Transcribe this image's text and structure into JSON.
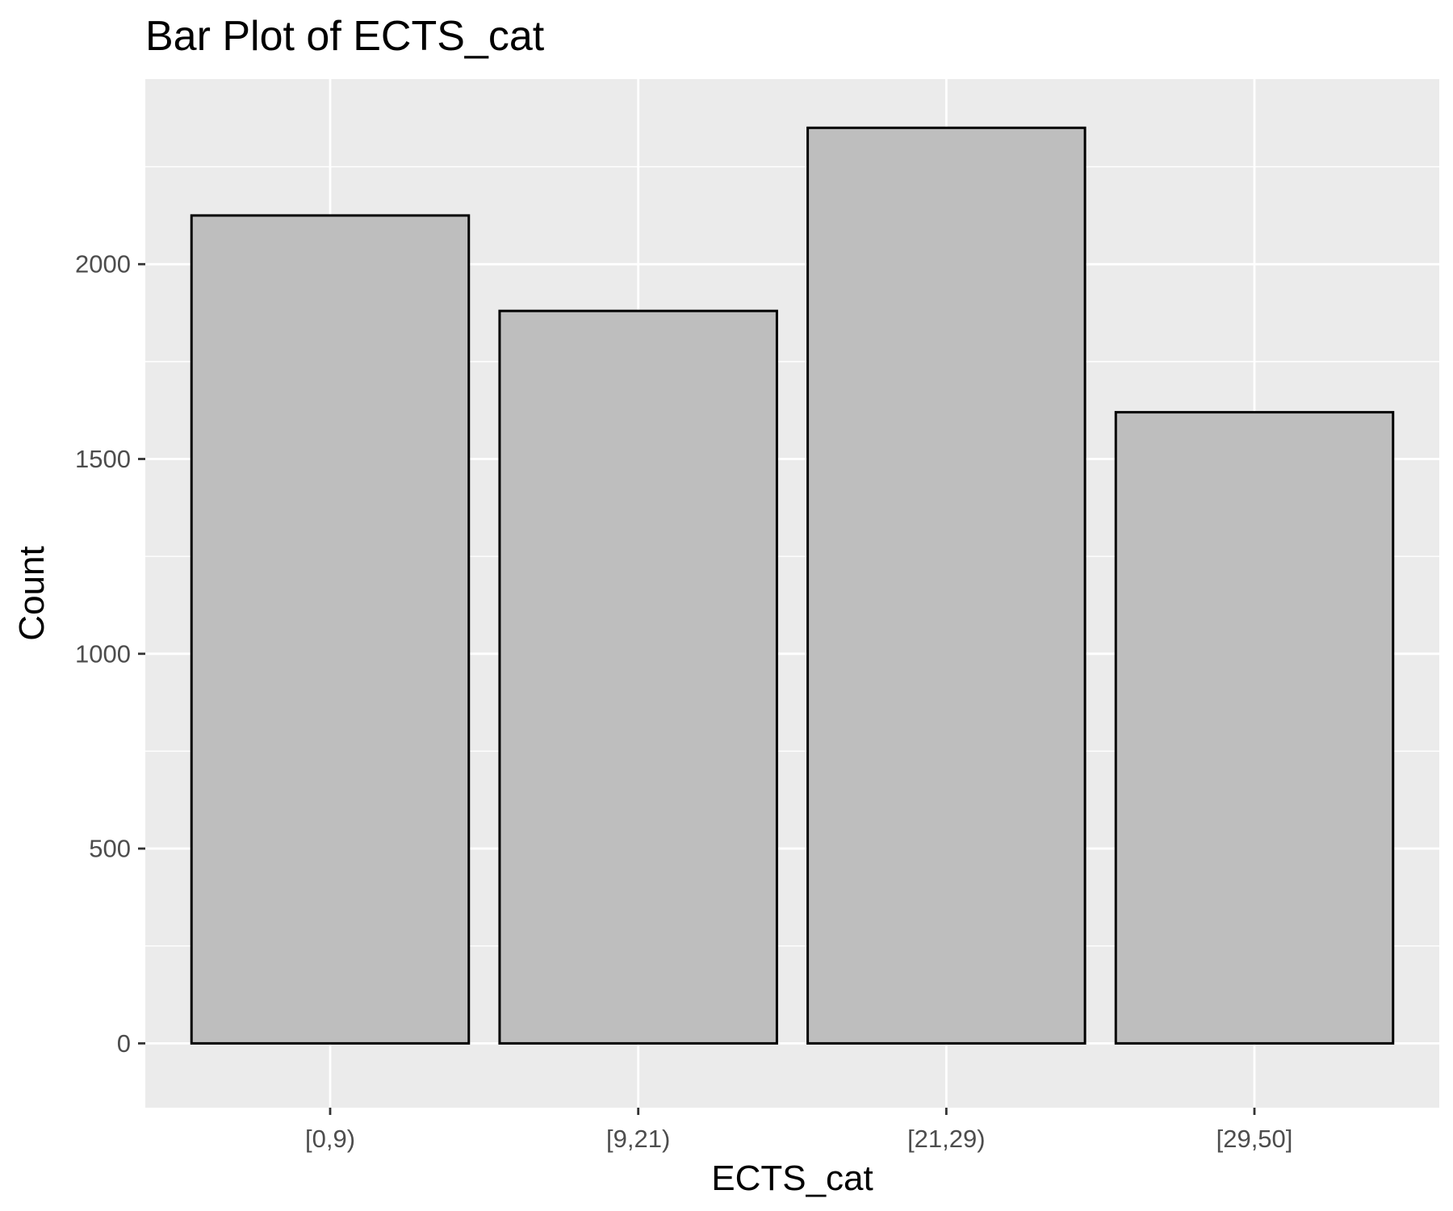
{
  "colors": {
    "panel_background": "#ebebeb",
    "grid": "#ffffff",
    "bar_fill": "#bebebe",
    "bar_stroke": "#000000",
    "tick_text": "#4d4d4d",
    "tick_mark": "#333333"
  },
  "chart_data": {
    "type": "bar",
    "title": "Bar Plot of ECTS_cat",
    "xlabel": "ECTS_cat",
    "ylabel": "Count",
    "categories": [
      "[0,9)",
      "[9,21)",
      "[21,29)",
      "[29,50]"
    ],
    "values": [
      2125,
      1880,
      2350,
      1620
    ],
    "ylim": [
      -165,
      2475
    ],
    "yticks": [
      0,
      500,
      1000,
      1500,
      2000
    ],
    "ytick_labels": [
      "0",
      "500",
      "1000",
      "1500",
      "2000"
    ],
    "y_minor_ticks": [
      250,
      750,
      1250,
      1750,
      2250
    ],
    "grid": true,
    "legend": "none"
  }
}
